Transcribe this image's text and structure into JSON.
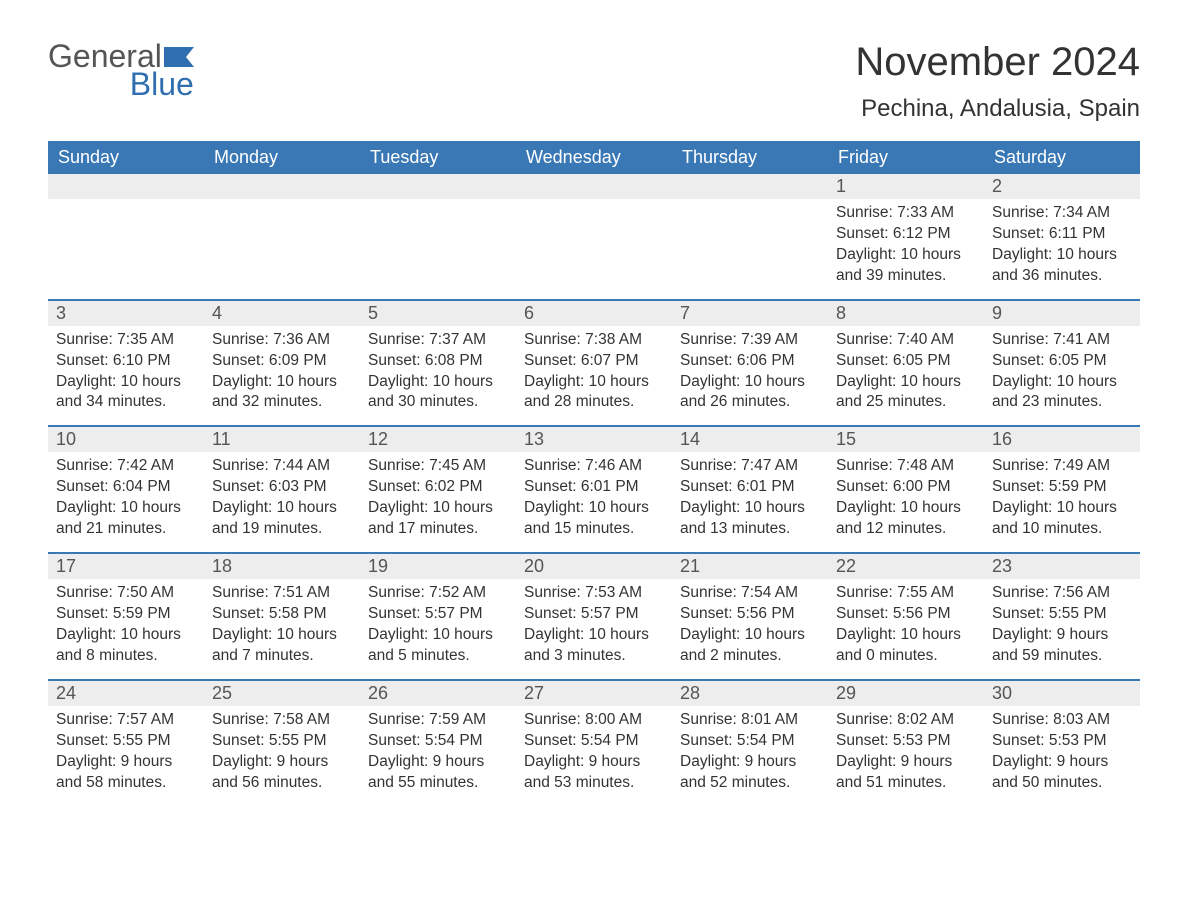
{
  "logo": {
    "general": "General",
    "blue": "Blue"
  },
  "title": "November 2024",
  "location": "Pechina, Andalusia, Spain",
  "colors": {
    "header_bg": "#3a78b5",
    "header_text": "#ffffff",
    "row_border": "#3a78b5",
    "daynum_bg": "#ededed",
    "text": "#333333",
    "logo_blue": "#2f6fb0"
  },
  "day_headers": [
    "Sunday",
    "Monday",
    "Tuesday",
    "Wednesday",
    "Thursday",
    "Friday",
    "Saturday"
  ],
  "weeks": [
    [
      {
        "empty": true
      },
      {
        "empty": true
      },
      {
        "empty": true
      },
      {
        "empty": true
      },
      {
        "empty": true
      },
      {
        "day": "1",
        "sunrise": "Sunrise: 7:33 AM",
        "sunset": "Sunset: 6:12 PM",
        "daylight1": "Daylight: 10 hours",
        "daylight2": "and 39 minutes."
      },
      {
        "day": "2",
        "sunrise": "Sunrise: 7:34 AM",
        "sunset": "Sunset: 6:11 PM",
        "daylight1": "Daylight: 10 hours",
        "daylight2": "and 36 minutes."
      }
    ],
    [
      {
        "day": "3",
        "sunrise": "Sunrise: 7:35 AM",
        "sunset": "Sunset: 6:10 PM",
        "daylight1": "Daylight: 10 hours",
        "daylight2": "and 34 minutes."
      },
      {
        "day": "4",
        "sunrise": "Sunrise: 7:36 AM",
        "sunset": "Sunset: 6:09 PM",
        "daylight1": "Daylight: 10 hours",
        "daylight2": "and 32 minutes."
      },
      {
        "day": "5",
        "sunrise": "Sunrise: 7:37 AM",
        "sunset": "Sunset: 6:08 PM",
        "daylight1": "Daylight: 10 hours",
        "daylight2": "and 30 minutes."
      },
      {
        "day": "6",
        "sunrise": "Sunrise: 7:38 AM",
        "sunset": "Sunset: 6:07 PM",
        "daylight1": "Daylight: 10 hours",
        "daylight2": "and 28 minutes."
      },
      {
        "day": "7",
        "sunrise": "Sunrise: 7:39 AM",
        "sunset": "Sunset: 6:06 PM",
        "daylight1": "Daylight: 10 hours",
        "daylight2": "and 26 minutes."
      },
      {
        "day": "8",
        "sunrise": "Sunrise: 7:40 AM",
        "sunset": "Sunset: 6:05 PM",
        "daylight1": "Daylight: 10 hours",
        "daylight2": "and 25 minutes."
      },
      {
        "day": "9",
        "sunrise": "Sunrise: 7:41 AM",
        "sunset": "Sunset: 6:05 PM",
        "daylight1": "Daylight: 10 hours",
        "daylight2": "and 23 minutes."
      }
    ],
    [
      {
        "day": "10",
        "sunrise": "Sunrise: 7:42 AM",
        "sunset": "Sunset: 6:04 PM",
        "daylight1": "Daylight: 10 hours",
        "daylight2": "and 21 minutes."
      },
      {
        "day": "11",
        "sunrise": "Sunrise: 7:44 AM",
        "sunset": "Sunset: 6:03 PM",
        "daylight1": "Daylight: 10 hours",
        "daylight2": "and 19 minutes."
      },
      {
        "day": "12",
        "sunrise": "Sunrise: 7:45 AM",
        "sunset": "Sunset: 6:02 PM",
        "daylight1": "Daylight: 10 hours",
        "daylight2": "and 17 minutes."
      },
      {
        "day": "13",
        "sunrise": "Sunrise: 7:46 AM",
        "sunset": "Sunset: 6:01 PM",
        "daylight1": "Daylight: 10 hours",
        "daylight2": "and 15 minutes."
      },
      {
        "day": "14",
        "sunrise": "Sunrise: 7:47 AM",
        "sunset": "Sunset: 6:01 PM",
        "daylight1": "Daylight: 10 hours",
        "daylight2": "and 13 minutes."
      },
      {
        "day": "15",
        "sunrise": "Sunrise: 7:48 AM",
        "sunset": "Sunset: 6:00 PM",
        "daylight1": "Daylight: 10 hours",
        "daylight2": "and 12 minutes."
      },
      {
        "day": "16",
        "sunrise": "Sunrise: 7:49 AM",
        "sunset": "Sunset: 5:59 PM",
        "daylight1": "Daylight: 10 hours",
        "daylight2": "and 10 minutes."
      }
    ],
    [
      {
        "day": "17",
        "sunrise": "Sunrise: 7:50 AM",
        "sunset": "Sunset: 5:59 PM",
        "daylight1": "Daylight: 10 hours",
        "daylight2": "and 8 minutes."
      },
      {
        "day": "18",
        "sunrise": "Sunrise: 7:51 AM",
        "sunset": "Sunset: 5:58 PM",
        "daylight1": "Daylight: 10 hours",
        "daylight2": "and 7 minutes."
      },
      {
        "day": "19",
        "sunrise": "Sunrise: 7:52 AM",
        "sunset": "Sunset: 5:57 PM",
        "daylight1": "Daylight: 10 hours",
        "daylight2": "and 5 minutes."
      },
      {
        "day": "20",
        "sunrise": "Sunrise: 7:53 AM",
        "sunset": "Sunset: 5:57 PM",
        "daylight1": "Daylight: 10 hours",
        "daylight2": "and 3 minutes."
      },
      {
        "day": "21",
        "sunrise": "Sunrise: 7:54 AM",
        "sunset": "Sunset: 5:56 PM",
        "daylight1": "Daylight: 10 hours",
        "daylight2": "and 2 minutes."
      },
      {
        "day": "22",
        "sunrise": "Sunrise: 7:55 AM",
        "sunset": "Sunset: 5:56 PM",
        "daylight1": "Daylight: 10 hours",
        "daylight2": "and 0 minutes."
      },
      {
        "day": "23",
        "sunrise": "Sunrise: 7:56 AM",
        "sunset": "Sunset: 5:55 PM",
        "daylight1": "Daylight: 9 hours",
        "daylight2": "and 59 minutes."
      }
    ],
    [
      {
        "day": "24",
        "sunrise": "Sunrise: 7:57 AM",
        "sunset": "Sunset: 5:55 PM",
        "daylight1": "Daylight: 9 hours",
        "daylight2": "and 58 minutes."
      },
      {
        "day": "25",
        "sunrise": "Sunrise: 7:58 AM",
        "sunset": "Sunset: 5:55 PM",
        "daylight1": "Daylight: 9 hours",
        "daylight2": "and 56 minutes."
      },
      {
        "day": "26",
        "sunrise": "Sunrise: 7:59 AM",
        "sunset": "Sunset: 5:54 PM",
        "daylight1": "Daylight: 9 hours",
        "daylight2": "and 55 minutes."
      },
      {
        "day": "27",
        "sunrise": "Sunrise: 8:00 AM",
        "sunset": "Sunset: 5:54 PM",
        "daylight1": "Daylight: 9 hours",
        "daylight2": "and 53 minutes."
      },
      {
        "day": "28",
        "sunrise": "Sunrise: 8:01 AM",
        "sunset": "Sunset: 5:54 PM",
        "daylight1": "Daylight: 9 hours",
        "daylight2": "and 52 minutes."
      },
      {
        "day": "29",
        "sunrise": "Sunrise: 8:02 AM",
        "sunset": "Sunset: 5:53 PM",
        "daylight1": "Daylight: 9 hours",
        "daylight2": "and 51 minutes."
      },
      {
        "day": "30",
        "sunrise": "Sunrise: 8:03 AM",
        "sunset": "Sunset: 5:53 PM",
        "daylight1": "Daylight: 9 hours",
        "daylight2": "and 50 minutes."
      }
    ]
  ]
}
